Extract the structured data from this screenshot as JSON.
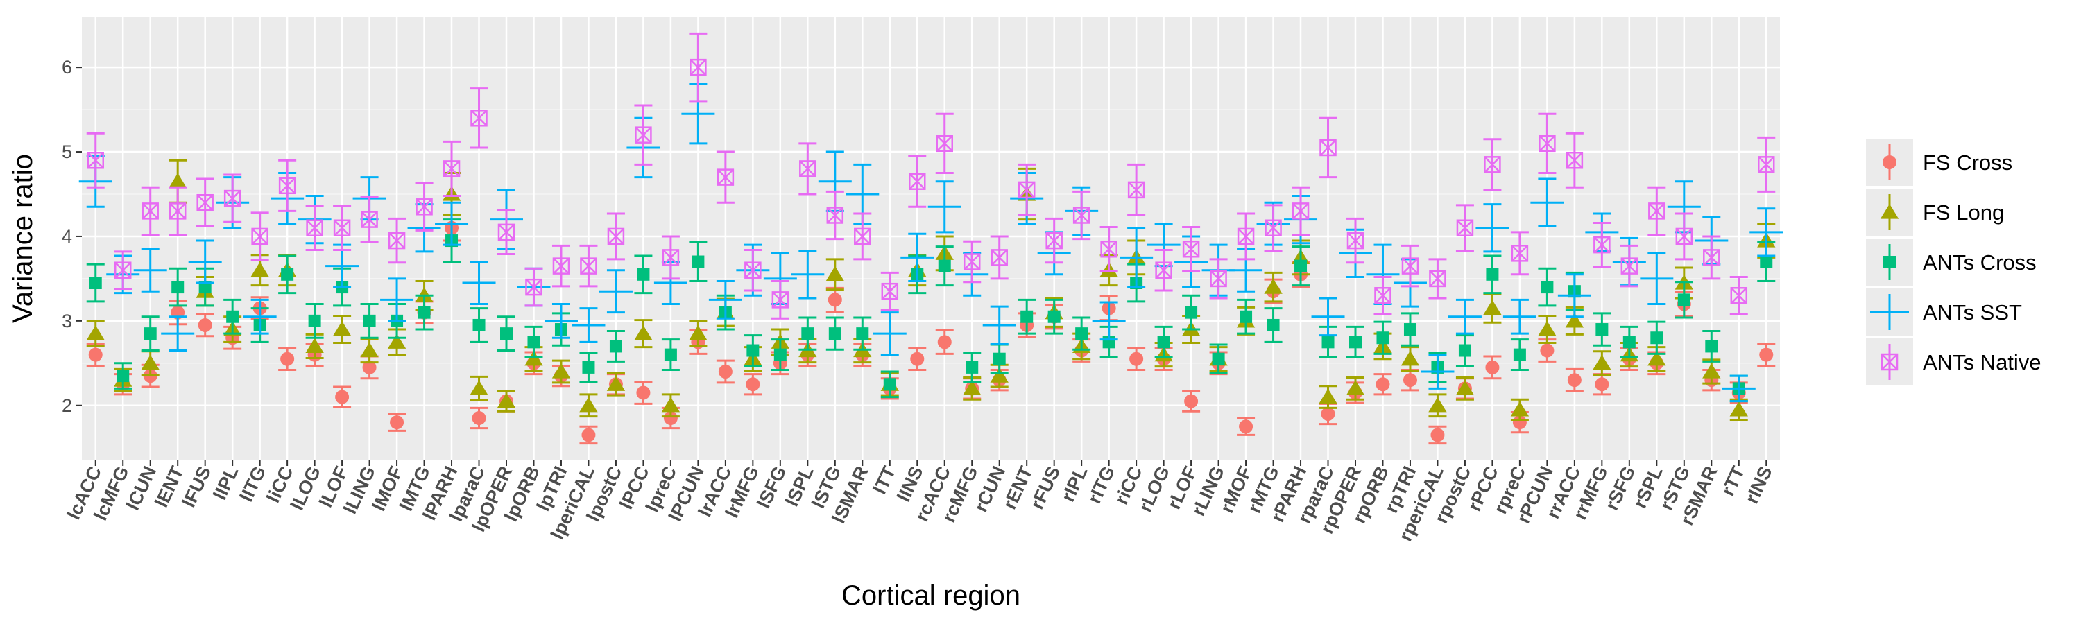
{
  "chart_data": {
    "type": "scatter",
    "xlabel": "Cortical region",
    "ylabel": "Variance ratio",
    "ylim": [
      1.35,
      6.6
    ],
    "yticks": [
      2,
      3,
      4,
      5,
      6
    ],
    "grid": true,
    "legend_position": "right",
    "categories": [
      "lcACC",
      "lcMFG",
      "lCUN",
      "lENT",
      "lFUS",
      "lIPL",
      "lITG",
      "liCC",
      "lLOG",
      "lLOF",
      "lLING",
      "lMOF",
      "lMTG",
      "lPARH",
      "lparaC",
      "lpOPER",
      "lpORB",
      "lpTRI",
      "lperiCAL",
      "lpostC",
      "lPCC",
      "lpreC",
      "lPCUN",
      "lrACC",
      "lrMFG",
      "lSFG",
      "lSPL",
      "lSTG",
      "lSMAR",
      "lTT",
      "lINS",
      "rcACC",
      "rcMFG",
      "rCUN",
      "rENT",
      "rFUS",
      "rIPL",
      "rITG",
      "riCC",
      "rLOG",
      "rLOF",
      "rLING",
      "rMOF",
      "rMTG",
      "rPARH",
      "rparaC",
      "rpOPER",
      "rpORB",
      "rpTRI",
      "rperiCAL",
      "rpostC",
      "rPCC",
      "rpreC",
      "rPCUN",
      "rrACC",
      "rrMFG",
      "rSFG",
      "rSPL",
      "rSTG",
      "rSMAR",
      "rTT",
      "rINS"
    ],
    "series": [
      {
        "name": "FS Cross",
        "color": "#f8766d",
        "marker": "circle",
        "values": [
          2.6,
          2.25,
          2.35,
          3.1,
          2.95,
          2.8,
          3.15,
          2.55,
          2.6,
          2.1,
          2.45,
          1.8,
          3.1,
          4.1,
          1.85,
          2.05,
          2.5,
          2.35,
          1.65,
          2.25,
          2.15,
          1.85,
          2.75,
          2.4,
          2.25,
          2.5,
          2.6,
          3.25,
          2.6,
          2.2,
          2.55,
          2.75,
          2.2,
          2.3,
          2.95,
          3.05,
          2.65,
          3.15,
          2.55,
          2.55,
          2.05,
          2.5,
          1.75,
          3.35,
          3.55,
          1.9,
          2.15,
          2.25,
          2.3,
          1.65,
          2.2,
          2.45,
          1.8,
          2.65,
          2.3,
          2.25,
          2.55,
          2.5,
          3.2,
          2.3,
          2.15,
          2.6
        ],
        "err": [
          0.13,
          0.12,
          0.13,
          0.14,
          0.13,
          0.13,
          0.13,
          0.13,
          0.13,
          0.12,
          0.13,
          0.1,
          0.13,
          0.15,
          0.12,
          0.12,
          0.13,
          0.12,
          0.1,
          0.12,
          0.13,
          0.12,
          0.14,
          0.13,
          0.12,
          0.13,
          0.13,
          0.14,
          0.13,
          0.12,
          0.13,
          0.14,
          0.12,
          0.12,
          0.14,
          0.14,
          0.13,
          0.14,
          0.13,
          0.13,
          0.12,
          0.13,
          0.1,
          0.14,
          0.15,
          0.12,
          0.12,
          0.12,
          0.12,
          0.1,
          0.12,
          0.13,
          0.12,
          0.13,
          0.13,
          0.12,
          0.13,
          0.13,
          0.14,
          0.12,
          0.12,
          0.13
        ]
      },
      {
        "name": "FS Long",
        "color": "#a3a500",
        "marker": "triangle",
        "values": [
          2.85,
          2.3,
          2.5,
          4.65,
          3.35,
          2.9,
          3.6,
          3.6,
          2.7,
          2.9,
          2.65,
          2.75,
          3.3,
          4.5,
          2.2,
          2.05,
          2.55,
          2.4,
          2.0,
          2.25,
          2.85,
          2.0,
          2.85,
          3.1,
          2.55,
          2.75,
          2.65,
          3.55,
          2.65,
          2.25,
          3.6,
          3.8,
          2.2,
          2.35,
          4.5,
          3.1,
          2.7,
          3.6,
          3.75,
          2.6,
          2.9,
          2.55,
          3.0,
          3.4,
          3.75,
          2.1,
          2.2,
          2.7,
          2.55,
          2.0,
          2.2,
          3.15,
          1.95,
          2.9,
          3.0,
          2.5,
          2.6,
          2.55,
          3.45,
          2.4,
          1.95,
          3.95
        ],
        "err": [
          0.15,
          0.13,
          0.14,
          0.25,
          0.17,
          0.15,
          0.18,
          0.18,
          0.14,
          0.16,
          0.14,
          0.15,
          0.17,
          0.25,
          0.14,
          0.12,
          0.14,
          0.13,
          0.13,
          0.13,
          0.16,
          0.13,
          0.15,
          0.16,
          0.14,
          0.15,
          0.14,
          0.18,
          0.14,
          0.13,
          0.18,
          0.2,
          0.13,
          0.13,
          0.3,
          0.17,
          0.15,
          0.18,
          0.2,
          0.14,
          0.16,
          0.14,
          0.16,
          0.17,
          0.2,
          0.13,
          0.13,
          0.15,
          0.14,
          0.13,
          0.13,
          0.17,
          0.12,
          0.16,
          0.16,
          0.14,
          0.14,
          0.14,
          0.18,
          0.14,
          0.12,
          0.2
        ]
      },
      {
        "name": "ANTs Cross",
        "color": "#00bf7d",
        "marker": "square",
        "values": [
          3.45,
          2.35,
          2.85,
          3.4,
          3.4,
          3.05,
          2.95,
          3.55,
          3.0,
          3.4,
          3.0,
          3.0,
          3.1,
          3.95,
          2.95,
          2.85,
          2.75,
          2.9,
          2.45,
          2.7,
          3.55,
          2.6,
          3.7,
          3.1,
          2.65,
          2.6,
          2.85,
          2.85,
          2.85,
          2.25,
          3.55,
          3.65,
          2.45,
          2.55,
          3.05,
          3.05,
          2.85,
          2.75,
          3.45,
          2.75,
          3.1,
          2.55,
          3.05,
          2.95,
          3.65,
          2.75,
          2.75,
          2.8,
          2.9,
          2.45,
          2.65,
          3.55,
          2.6,
          3.4,
          3.35,
          2.9,
          2.75,
          2.8,
          3.25,
          2.7,
          2.2,
          3.7
        ],
        "err": [
          0.22,
          0.15,
          0.2,
          0.22,
          0.22,
          0.2,
          0.2,
          0.22,
          0.2,
          0.22,
          0.2,
          0.2,
          0.2,
          0.25,
          0.2,
          0.2,
          0.18,
          0.19,
          0.17,
          0.18,
          0.22,
          0.18,
          0.23,
          0.2,
          0.18,
          0.18,
          0.19,
          0.19,
          0.19,
          0.15,
          0.22,
          0.23,
          0.17,
          0.17,
          0.2,
          0.2,
          0.19,
          0.18,
          0.22,
          0.18,
          0.2,
          0.17,
          0.2,
          0.2,
          0.23,
          0.18,
          0.18,
          0.19,
          0.19,
          0.17,
          0.18,
          0.22,
          0.18,
          0.22,
          0.22,
          0.19,
          0.18,
          0.19,
          0.21,
          0.18,
          0.15,
          0.23
        ]
      },
      {
        "name": "ANTs SST",
        "color": "#00b0f6",
        "marker": "plus",
        "values": [
          4.65,
          3.55,
          3.6,
          2.85,
          3.7,
          4.4,
          3.05,
          4.45,
          4.2,
          3.65,
          4.45,
          3.25,
          4.1,
          4.15,
          3.45,
          4.2,
          3.4,
          3.0,
          2.95,
          3.35,
          5.05,
          3.45,
          5.45,
          3.25,
          3.6,
          3.5,
          3.55,
          4.65,
          4.5,
          2.85,
          3.75,
          4.35,
          3.55,
          2.95,
          4.45,
          3.8,
          4.3,
          3.0,
          3.75,
          3.9,
          3.7,
          3.6,
          3.6,
          4.15,
          4.2,
          3.05,
          3.8,
          3.55,
          3.45,
          2.4,
          3.05,
          4.1,
          3.05,
          4.4,
          3.3,
          4.05,
          3.7,
          3.5,
          4.35,
          3.95,
          2.2,
          4.05
        ],
        "err": [
          0.3,
          0.22,
          0.25,
          0.2,
          0.25,
          0.3,
          0.2,
          0.3,
          0.28,
          0.25,
          0.25,
          0.25,
          0.28,
          0.25,
          0.25,
          0.35,
          0.22,
          0.2,
          0.2,
          0.25,
          0.35,
          0.25,
          0.35,
          0.22,
          0.3,
          0.3,
          0.28,
          0.35,
          0.35,
          0.25,
          0.28,
          0.3,
          0.25,
          0.22,
          0.3,
          0.25,
          0.28,
          0.22,
          0.35,
          0.25,
          0.3,
          0.3,
          0.25,
          0.25,
          0.28,
          0.22,
          0.28,
          0.35,
          0.28,
          0.2,
          0.2,
          0.28,
          0.2,
          0.28,
          0.25,
          0.22,
          0.28,
          0.3,
          0.3,
          0.28,
          0.15,
          0.28
        ]
      },
      {
        "name": "ANTs Native",
        "color": "#e76bf3",
        "marker": "boxcross",
        "values": [
          4.9,
          3.6,
          4.3,
          4.3,
          4.4,
          4.45,
          4.0,
          4.6,
          4.1,
          4.1,
          4.2,
          3.95,
          4.35,
          4.8,
          5.4,
          4.05,
          3.4,
          3.65,
          3.65,
          4.0,
          5.2,
          3.75,
          6.0,
          4.7,
          3.6,
          3.25,
          4.8,
          4.25,
          4.0,
          3.35,
          4.65,
          5.1,
          3.7,
          3.75,
          4.55,
          3.95,
          4.25,
          3.85,
          4.55,
          3.6,
          3.85,
          3.5,
          4.0,
          4.1,
          4.3,
          5.05,
          3.95,
          3.3,
          3.65,
          3.5,
          4.1,
          4.85,
          3.8,
          5.1,
          4.9,
          3.9,
          3.65,
          4.3,
          4.0,
          3.75,
          3.3,
          4.85
        ],
        "err": [
          0.32,
          0.22,
          0.28,
          0.28,
          0.28,
          0.28,
          0.28,
          0.3,
          0.26,
          0.26,
          0.27,
          0.26,
          0.28,
          0.32,
          0.35,
          0.26,
          0.22,
          0.24,
          0.24,
          0.27,
          0.35,
          0.25,
          0.4,
          0.3,
          0.24,
          0.22,
          0.3,
          0.28,
          0.27,
          0.22,
          0.3,
          0.35,
          0.24,
          0.25,
          0.3,
          0.26,
          0.28,
          0.26,
          0.3,
          0.24,
          0.26,
          0.23,
          0.27,
          0.27,
          0.28,
          0.35,
          0.26,
          0.22,
          0.24,
          0.23,
          0.27,
          0.3,
          0.25,
          0.35,
          0.32,
          0.26,
          0.24,
          0.28,
          0.27,
          0.25,
          0.22,
          0.32
        ]
      }
    ]
  }
}
